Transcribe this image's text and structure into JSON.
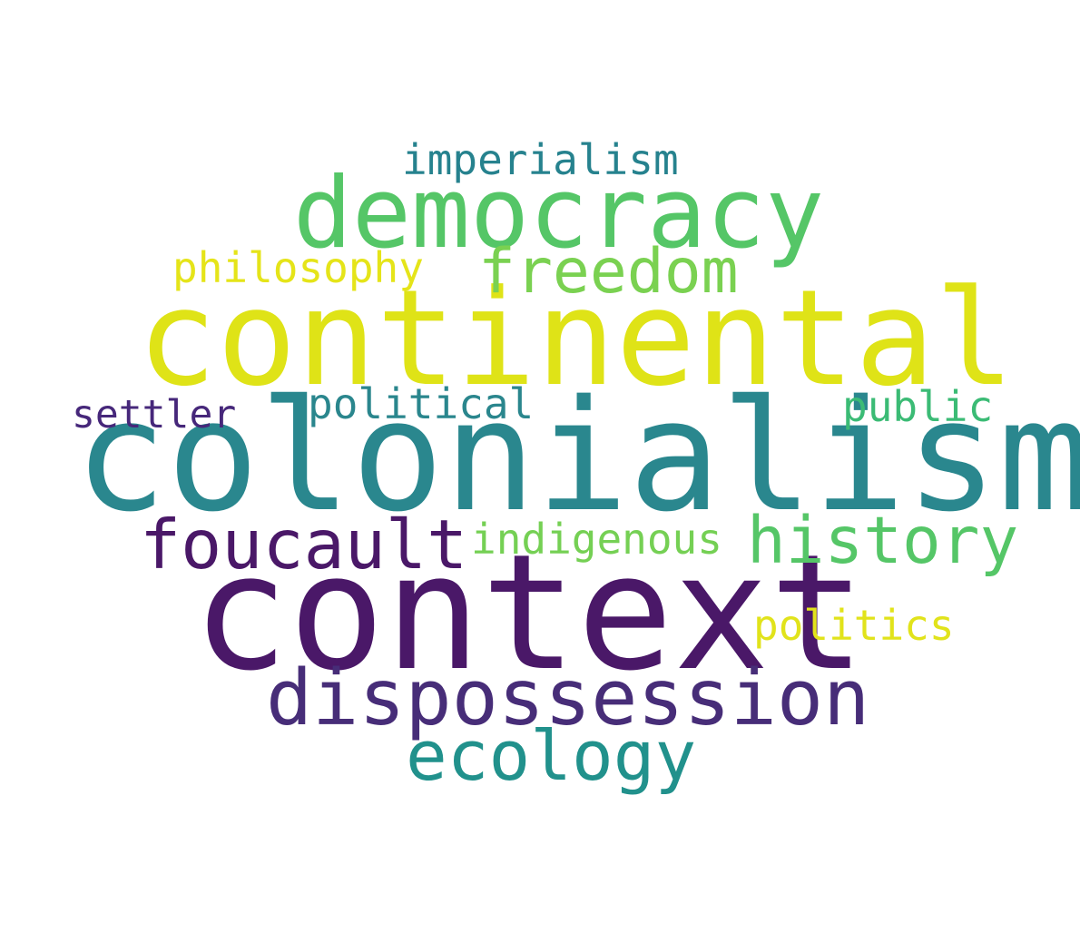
{
  "word_cloud": {
    "background": "#ffffff",
    "palette": "viridis",
    "words": [
      {
        "text": "colonialism",
        "color": "#2a878e"
      },
      {
        "text": "context",
        "color": "#4a1868"
      },
      {
        "text": "continental",
        "color": "#dfe317"
      },
      {
        "text": "democracy",
        "color": "#55c667"
      },
      {
        "text": "dispossession",
        "color": "#472d78"
      },
      {
        "text": "freedom",
        "color": "#7ad151"
      },
      {
        "text": "foucault",
        "color": "#4a1868"
      },
      {
        "text": "history",
        "color": "#55c667"
      },
      {
        "text": "ecology",
        "color": "#21918c"
      },
      {
        "text": "imperialism",
        "color": "#26828e"
      },
      {
        "text": "philosophy",
        "color": "#e5e419"
      },
      {
        "text": "political",
        "color": "#2a868d"
      },
      {
        "text": "public",
        "color": "#3bbb75"
      },
      {
        "text": "settler",
        "color": "#46277a"
      },
      {
        "text": "indigenous",
        "color": "#75d054"
      },
      {
        "text": "politics",
        "color": "#e1e31b"
      }
    ]
  }
}
